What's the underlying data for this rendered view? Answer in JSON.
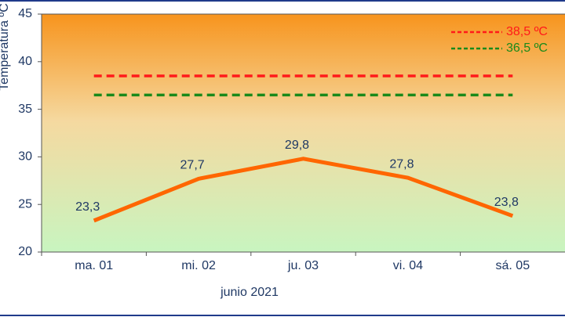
{
  "chart_data": {
    "type": "line",
    "y_label": "Temperatura ºC",
    "x_label": "junio 2021",
    "categories": [
      "ma. 01",
      "mi. 02",
      "ju. 03",
      "vi. 04",
      "sá. 05"
    ],
    "series": [
      {
        "color": "#ff6600",
        "values": [
          23.3,
          27.7,
          29.8,
          27.8,
          23.8
        ],
        "value_labels": [
          "23,3",
          "27,7",
          "29,8",
          "27,8",
          "23,8"
        ]
      },
      {
        "name": "38,5 ºC",
        "color": "#ff1a1a",
        "dashed": true,
        "values": [
          38.5,
          38.5,
          38.5,
          38.5,
          38.5
        ]
      },
      {
        "name": "36,5 ºC",
        "color": "#1a8a1a",
        "dashed": true,
        "values": [
          36.5,
          36.5,
          36.5,
          36.5,
          36.5
        ]
      }
    ],
    "ylim": [
      20,
      45
    ],
    "yticks": [
      20,
      25,
      30,
      35,
      40,
      45
    ],
    "legend": "top-right"
  }
}
